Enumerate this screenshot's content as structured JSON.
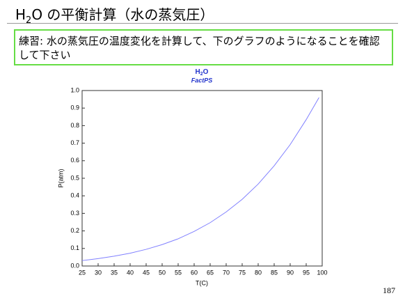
{
  "header": {
    "title": {
      "formula_main": "H",
      "formula_sub": "2",
      "rest": "O の平衡計算（水の蒸気圧）"
    }
  },
  "task": "練習: 水の蒸気圧の温度変化を計算して、下のグラフのようになることを確認して下さい",
  "page_number": "187",
  "chart_data": {
    "type": "line",
    "title": {
      "main": "H",
      "sub": "2",
      "rest": "O"
    },
    "subtitle": "FactPS",
    "x_label": "T(C)",
    "y_label": "P(atm)",
    "x": [
      25,
      30,
      35,
      40,
      45,
      50,
      55,
      60,
      65,
      70,
      75,
      80,
      85,
      90,
      95,
      99
    ],
    "values": [
      0.031,
      0.042,
      0.056,
      0.073,
      0.095,
      0.122,
      0.155,
      0.197,
      0.247,
      0.308,
      0.38,
      0.467,
      0.571,
      0.692,
      0.834,
      0.96
    ],
    "color": "#8080ff",
    "xlim": [
      25,
      100
    ],
    "xticks": [
      25,
      30,
      35,
      40,
      45,
      50,
      55,
      60,
      65,
      70,
      75,
      80,
      85,
      90,
      95,
      100
    ],
    "ylim": [
      0,
      1
    ],
    "yticks": [
      {
        "value": 0,
        "label": "0.0"
      },
      0.1,
      0.2,
      0.3,
      0.4,
      0.5,
      0.6,
      0.7,
      0.8,
      0.9,
      {
        "value": 1,
        "label": "1.0"
      }
    ],
    "grid": false
  }
}
